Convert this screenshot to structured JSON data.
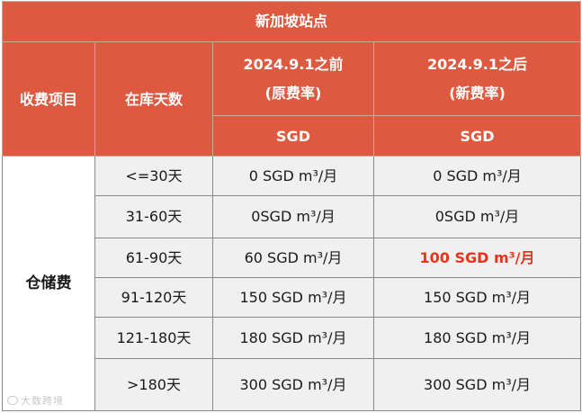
{
  "table": {
    "title": "新加坡站点",
    "col_item": "收费项目",
    "col_days": "在库天数",
    "col_old_line1": "2024.9.1之前",
    "col_old_line2": "(原费率)",
    "col_new_line1": "2024.9.1之后",
    "col_new_line2": "(新费率)",
    "currency_old": "SGD",
    "currency_new": "SGD",
    "category": "仓储费",
    "rows": [
      {
        "days": "<=30天",
        "old": "0 SGD m³/月",
        "new": "0 SGD m³/月"
      },
      {
        "days": "31-60天",
        "old": "0SGD m³/月",
        "new": "0SGD m³/月"
      },
      {
        "days": "61-90天",
        "old": "60 SGD m³/月",
        "new": "100 SGD m³/月"
      },
      {
        "days": "91-120天",
        "old": "150 SGD m³/月",
        "new": "150 SGD m³/月"
      },
      {
        "days": "121-180天",
        "old": "180 SGD m³/月",
        "new": "180 SGD m³/月"
      },
      {
        "days": ">180天",
        "old": "300 SGD m³/月",
        "new": "300 SGD m³/月"
      }
    ]
  },
  "colors": {
    "header_bg": "#dd5940",
    "highlight": "#e8341c",
    "body_bg": "#f0f0f0"
  },
  "watermark": "大数跨境"
}
